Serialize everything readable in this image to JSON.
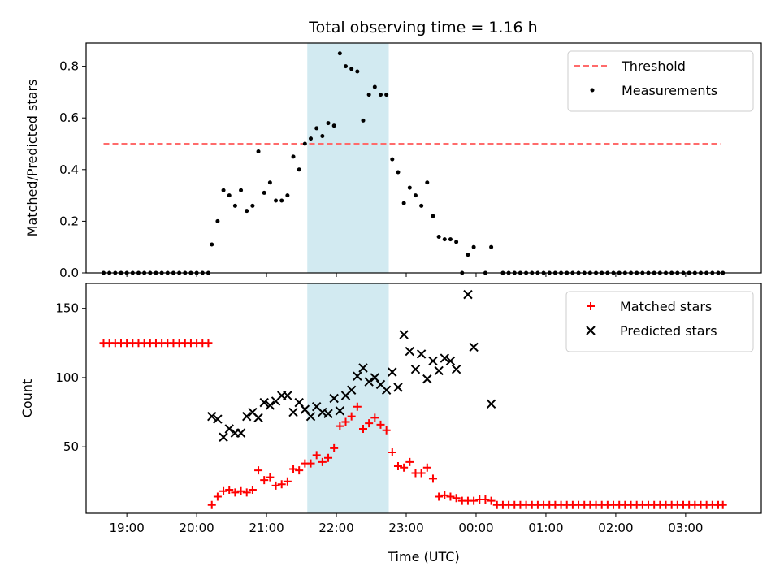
{
  "title": "Total observing time = 1.16 h",
  "shade": {
    "x0": "21:35",
    "x1": "22:45",
    "color": "#add8e6"
  },
  "chart_data": [
    {
      "type": "scatter",
      "ylabel": "Matched/Predicted stars",
      "xlabel": "",
      "ylim": [
        0,
        0.89
      ],
      "yticks": [
        "0.0",
        "0.2",
        "0.4",
        "0.6",
        "0.8"
      ],
      "xlim": [
        "18:25",
        "04:05"
      ],
      "threshold": {
        "name": "Threshold",
        "value": 0.5,
        "x": [
          "18:40",
          "03:30"
        ],
        "color": "#ff6b6b"
      },
      "series": [
        {
          "name": "Measurements",
          "color": "#000000",
          "marker": "dot",
          "points": [
            [
              "18:40",
              0
            ],
            [
              "18:45",
              0
            ],
            [
              "18:50",
              0
            ],
            [
              "18:55",
              0
            ],
            [
              "19:00",
              0
            ],
            [
              "19:05",
              0
            ],
            [
              "19:10",
              0
            ],
            [
              "19:15",
              0
            ],
            [
              "19:20",
              0
            ],
            [
              "19:25",
              0
            ],
            [
              "19:30",
              0
            ],
            [
              "19:35",
              0
            ],
            [
              "19:40",
              0
            ],
            [
              "19:45",
              0
            ],
            [
              "19:50",
              0
            ],
            [
              "19:55",
              0
            ],
            [
              "20:00",
              0
            ],
            [
              "20:05",
              0
            ],
            [
              "20:10",
              0
            ],
            [
              "20:13",
              0.11
            ],
            [
              "20:18",
              0.2
            ],
            [
              "20:23",
              0.32
            ],
            [
              "20:28",
              0.3
            ],
            [
              "20:33",
              0.26
            ],
            [
              "20:38",
              0.32
            ],
            [
              "20:43",
              0.24
            ],
            [
              "20:48",
              0.26
            ],
            [
              "20:53",
              0.47
            ],
            [
              "20:58",
              0.31
            ],
            [
              "21:03",
              0.35
            ],
            [
              "21:08",
              0.28
            ],
            [
              "21:13",
              0.28
            ],
            [
              "21:18",
              0.3
            ],
            [
              "21:23",
              0.45
            ],
            [
              "21:28",
              0.4
            ],
            [
              "21:33",
              0.5
            ],
            [
              "21:38",
              0.52
            ],
            [
              "21:43",
              0.56
            ],
            [
              "21:48",
              0.53
            ],
            [
              "21:53",
              0.58
            ],
            [
              "21:58",
              0.57
            ],
            [
              "22:03",
              0.85
            ],
            [
              "22:08",
              0.8
            ],
            [
              "22:13",
              0.79
            ],
            [
              "22:18",
              0.78
            ],
            [
              "22:23",
              0.59
            ],
            [
              "22:28",
              0.69
            ],
            [
              "22:33",
              0.72
            ],
            [
              "22:38",
              0.69
            ],
            [
              "22:43",
              0.69
            ],
            [
              "22:48",
              0.44
            ],
            [
              "22:53",
              0.39
            ],
            [
              "22:58",
              0.27
            ],
            [
              "23:03",
              0.33
            ],
            [
              "23:08",
              0.3
            ],
            [
              "23:13",
              0.26
            ],
            [
              "23:18",
              0.35
            ],
            [
              "23:23",
              0.22
            ],
            [
              "23:28",
              0.14
            ],
            [
              "23:33",
              0.13
            ],
            [
              "23:38",
              0.13
            ],
            [
              "23:43",
              0.12
            ],
            [
              "23:48",
              0
            ],
            [
              "23:53",
              0.07
            ],
            [
              "23:58",
              0.1
            ],
            [
              "00:08",
              0
            ],
            [
              "00:13",
              0.1
            ],
            [
              "00:23",
              0
            ],
            [
              "00:28",
              0
            ],
            [
              "00:33",
              0
            ],
            [
              "00:38",
              0
            ],
            [
              "00:43",
              0
            ],
            [
              "00:48",
              0
            ],
            [
              "00:53",
              0
            ],
            [
              "00:58",
              0
            ],
            [
              "01:03",
              0
            ],
            [
              "01:08",
              0
            ],
            [
              "01:13",
              0
            ],
            [
              "01:18",
              0
            ],
            [
              "01:23",
              0
            ],
            [
              "01:28",
              0
            ],
            [
              "01:33",
              0
            ],
            [
              "01:38",
              0
            ],
            [
              "01:43",
              0
            ],
            [
              "01:48",
              0
            ],
            [
              "01:53",
              0
            ],
            [
              "01:58",
              0
            ],
            [
              "02:03",
              0
            ],
            [
              "02:08",
              0
            ],
            [
              "02:13",
              0
            ],
            [
              "02:18",
              0
            ],
            [
              "02:23",
              0
            ],
            [
              "02:28",
              0
            ],
            [
              "02:33",
              0
            ],
            [
              "02:38",
              0
            ],
            [
              "02:43",
              0
            ],
            [
              "02:48",
              0
            ],
            [
              "02:53",
              0
            ],
            [
              "02:58",
              0
            ],
            [
              "03:03",
              0
            ],
            [
              "03:08",
              0
            ],
            [
              "03:13",
              0
            ],
            [
              "03:18",
              0
            ],
            [
              "03:23",
              0
            ],
            [
              "03:28",
              0
            ],
            [
              "03:32",
              0
            ]
          ]
        }
      ],
      "legend": "upper right",
      "grid": false
    },
    {
      "type": "scatter",
      "ylabel": "Count",
      "xlabel": "Time (UTC)",
      "ylim": [
        2,
        168
      ],
      "yticks": [
        "50",
        "100",
        "150"
      ],
      "xlim": [
        "18:25",
        "04:05"
      ],
      "xticks": [
        "19:00",
        "20:00",
        "21:00",
        "22:00",
        "23:00",
        "00:00",
        "01:00",
        "02:00",
        "03:00"
      ],
      "series": [
        {
          "name": "Matched stars",
          "color": "#ff0000",
          "marker": "plus",
          "points": [
            [
              "18:40",
              125
            ],
            [
              "18:45",
              125
            ],
            [
              "18:50",
              125
            ],
            [
              "18:55",
              125
            ],
            [
              "19:00",
              125
            ],
            [
              "19:05",
              125
            ],
            [
              "19:10",
              125
            ],
            [
              "19:15",
              125
            ],
            [
              "19:20",
              125
            ],
            [
              "19:25",
              125
            ],
            [
              "19:30",
              125
            ],
            [
              "19:35",
              125
            ],
            [
              "19:40",
              125
            ],
            [
              "19:45",
              125
            ],
            [
              "19:50",
              125
            ],
            [
              "19:55",
              125
            ],
            [
              "20:00",
              125
            ],
            [
              "20:05",
              125
            ],
            [
              "20:10",
              125
            ],
            [
              "20:13",
              8
            ],
            [
              "20:18",
              14
            ],
            [
              "20:23",
              18
            ],
            [
              "20:28",
              19
            ],
            [
              "20:33",
              17
            ],
            [
              "20:38",
              18
            ],
            [
              "20:43",
              17
            ],
            [
              "20:48",
              19
            ],
            [
              "20:53",
              33
            ],
            [
              "20:58",
              26
            ],
            [
              "21:03",
              28
            ],
            [
              "21:08",
              22
            ],
            [
              "21:13",
              23
            ],
            [
              "21:18",
              25
            ],
            [
              "21:23",
              34
            ],
            [
              "21:28",
              33
            ],
            [
              "21:33",
              38
            ],
            [
              "21:38",
              38
            ],
            [
              "21:43",
              44
            ],
            [
              "21:48",
              39
            ],
            [
              "21:53",
              42
            ],
            [
              "21:58",
              49
            ],
            [
              "22:03",
              65
            ],
            [
              "22:08",
              68
            ],
            [
              "22:13",
              72
            ],
            [
              "22:18",
              79
            ],
            [
              "22:23",
              63
            ],
            [
              "22:28",
              67
            ],
            [
              "22:33",
              71
            ],
            [
              "22:38",
              66
            ],
            [
              "22:43",
              62
            ],
            [
              "22:48",
              46
            ],
            [
              "22:53",
              36
            ],
            [
              "22:58",
              35
            ],
            [
              "23:03",
              39
            ],
            [
              "23:08",
              31
            ],
            [
              "23:13",
              31
            ],
            [
              "23:18",
              35
            ],
            [
              "23:23",
              27
            ],
            [
              "23:28",
              14
            ],
            [
              "23:33",
              15
            ],
            [
              "23:38",
              14
            ],
            [
              "23:43",
              13
            ],
            [
              "23:48",
              11
            ],
            [
              "23:53",
              11
            ],
            [
              "23:58",
              11
            ],
            [
              "00:03",
              12
            ],
            [
              "00:08",
              12
            ],
            [
              "00:13",
              11
            ],
            [
              "00:18",
              8
            ],
            [
              "00:23",
              8
            ],
            [
              "00:28",
              8
            ],
            [
              "00:33",
              8
            ],
            [
              "00:38",
              8
            ],
            [
              "00:43",
              8
            ],
            [
              "00:48",
              8
            ],
            [
              "00:53",
              8
            ],
            [
              "00:58",
              8
            ],
            [
              "01:03",
              8
            ],
            [
              "01:08",
              8
            ],
            [
              "01:13",
              8
            ],
            [
              "01:18",
              8
            ],
            [
              "01:23",
              8
            ],
            [
              "01:28",
              8
            ],
            [
              "01:33",
              8
            ],
            [
              "01:38",
              8
            ],
            [
              "01:43",
              8
            ],
            [
              "01:48",
              8
            ],
            [
              "01:53",
              8
            ],
            [
              "01:58",
              8
            ],
            [
              "02:03",
              8
            ],
            [
              "02:08",
              8
            ],
            [
              "02:13",
              8
            ],
            [
              "02:18",
              8
            ],
            [
              "02:23",
              8
            ],
            [
              "02:28",
              8
            ],
            [
              "02:33",
              8
            ],
            [
              "02:38",
              8
            ],
            [
              "02:43",
              8
            ],
            [
              "02:48",
              8
            ],
            [
              "02:53",
              8
            ],
            [
              "02:58",
              8
            ],
            [
              "03:03",
              8
            ],
            [
              "03:08",
              8
            ],
            [
              "03:13",
              8
            ],
            [
              "03:18",
              8
            ],
            [
              "03:23",
              8
            ],
            [
              "03:28",
              8
            ],
            [
              "03:32",
              8
            ]
          ]
        },
        {
          "name": "Predicted stars",
          "color": "#000000",
          "marker": "x",
          "points": [
            [
              "20:13",
              72
            ],
            [
              "20:18",
              70
            ],
            [
              "20:23",
              57
            ],
            [
              "20:28",
              63
            ],
            [
              "20:33",
              60
            ],
            [
              "20:38",
              60
            ],
            [
              "20:43",
              72
            ],
            [
              "20:48",
              75
            ],
            [
              "20:53",
              71
            ],
            [
              "20:58",
              82
            ],
            [
              "21:03",
              80
            ],
            [
              "21:08",
              83
            ],
            [
              "21:13",
              87
            ],
            [
              "21:18",
              87
            ],
            [
              "21:23",
              75
            ],
            [
              "21:28",
              82
            ],
            [
              "21:33",
              77
            ],
            [
              "21:38",
              72
            ],
            [
              "21:43",
              79
            ],
            [
              "21:48",
              75
            ],
            [
              "21:53",
              74
            ],
            [
              "21:58",
              85
            ],
            [
              "22:03",
              76
            ],
            [
              "22:08",
              87
            ],
            [
              "22:13",
              91
            ],
            [
              "22:18",
              101
            ],
            [
              "22:23",
              107
            ],
            [
              "22:28",
              97
            ],
            [
              "22:33",
              100
            ],
            [
              "22:38",
              95
            ],
            [
              "22:43",
              91
            ],
            [
              "22:48",
              104
            ],
            [
              "22:53",
              93
            ],
            [
              "22:58",
              131
            ],
            [
              "23:03",
              119
            ],
            [
              "23:08",
              106
            ],
            [
              "23:13",
              117
            ],
            [
              "23:18",
              99
            ],
            [
              "23:23",
              112
            ],
            [
              "23:28",
              105
            ],
            [
              "23:33",
              114
            ],
            [
              "23:38",
              112
            ],
            [
              "23:43",
              106
            ],
            [
              "23:53",
              160
            ],
            [
              "23:58",
              122
            ],
            [
              "00:13",
              81
            ]
          ]
        }
      ],
      "legend": "upper right",
      "grid": false
    }
  ]
}
